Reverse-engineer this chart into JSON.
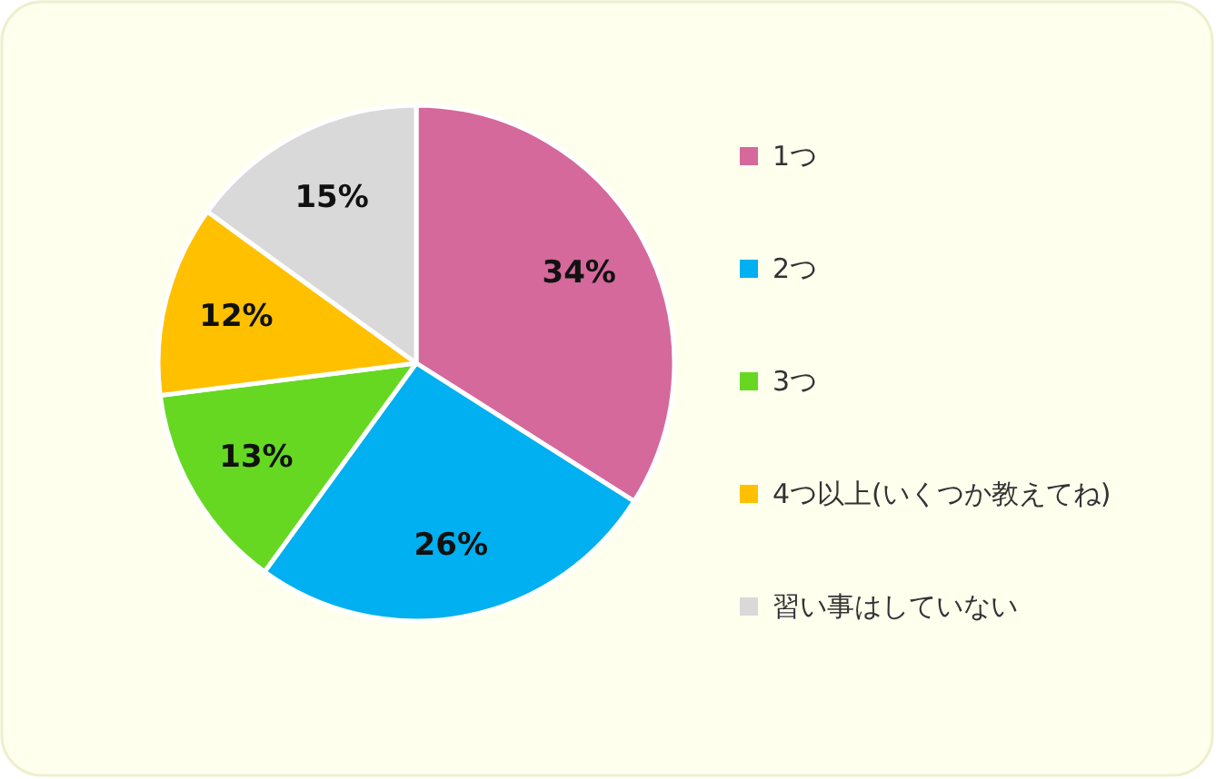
{
  "chart_data": {
    "type": "pie",
    "categories": [
      "1つ",
      "2つ",
      "3つ",
      "4つ以上(いくつか教えてね)",
      "習い事はしていない"
    ],
    "values": [
      34,
      26,
      13,
      12,
      15
    ],
    "value_labels": [
      "34%",
      "26%",
      "13%",
      "12%",
      "15%"
    ],
    "colors": [
      "#d5699b",
      "#00b0f0",
      "#66d822",
      "#ffc000",
      "#d9d9d9"
    ],
    "legend": "right"
  }
}
